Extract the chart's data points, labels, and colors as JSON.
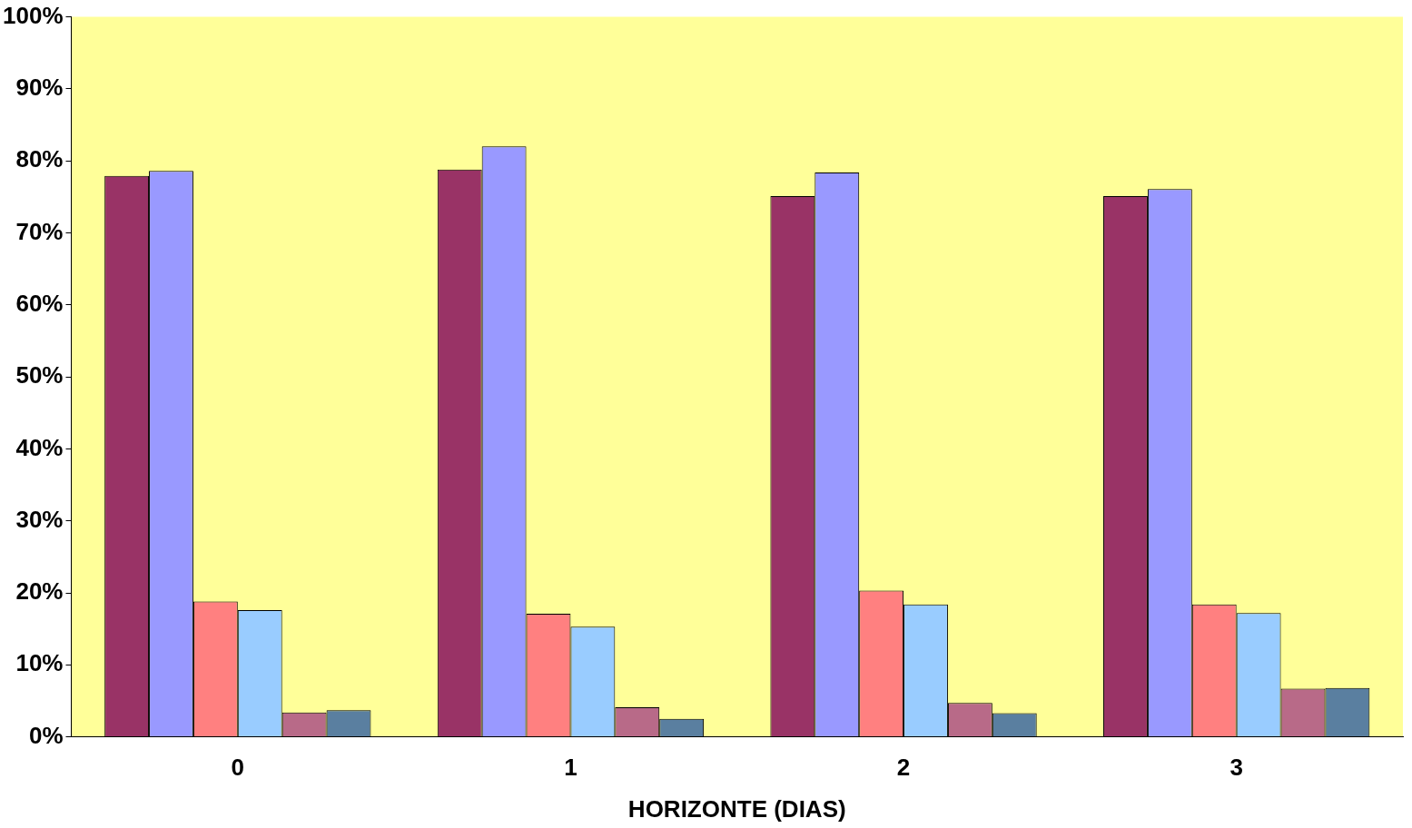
{
  "chart_data": {
    "type": "bar",
    "xlabel": "HORIZONTE (DIAS)",
    "categories": [
      "0",
      "1",
      "2",
      "3"
    ],
    "series": [
      {
        "color": "#993366",
        "values": [
          77.9,
          78.8,
          75.1,
          75.1
        ]
      },
      {
        "color": "#9999ff",
        "values": [
          78.6,
          82.0,
          78.4,
          76.1
        ]
      },
      {
        "color": "#ff8080",
        "values": [
          18.8,
          17.1,
          20.3,
          18.4
        ]
      },
      {
        "color": "#99ccff",
        "values": [
          17.6,
          15.3,
          18.4,
          17.2
        ]
      },
      {
        "color": "#b86a88",
        "values": [
          3.4,
          4.1,
          4.7,
          6.7
        ]
      },
      {
        "color": "#5a7fa0",
        "values": [
          3.7,
          2.5,
          3.3,
          6.8
        ]
      }
    ],
    "ylim": [
      0,
      100
    ],
    "yticks": [
      {
        "value": 0,
        "label": "0%"
      },
      {
        "value": 10,
        "label": "10%"
      },
      {
        "value": 20,
        "label": "20%"
      },
      {
        "value": 30,
        "label": "30%"
      },
      {
        "value": 40,
        "label": "40%"
      },
      {
        "value": 50,
        "label": "50%"
      },
      {
        "value": 60,
        "label": "60%"
      },
      {
        "value": 70,
        "label": "70%"
      },
      {
        "value": 80,
        "label": "80%"
      },
      {
        "value": 90,
        "label": "90%"
      },
      {
        "value": 100,
        "label": "100%"
      }
    ],
    "grid": false,
    "legend": false
  }
}
